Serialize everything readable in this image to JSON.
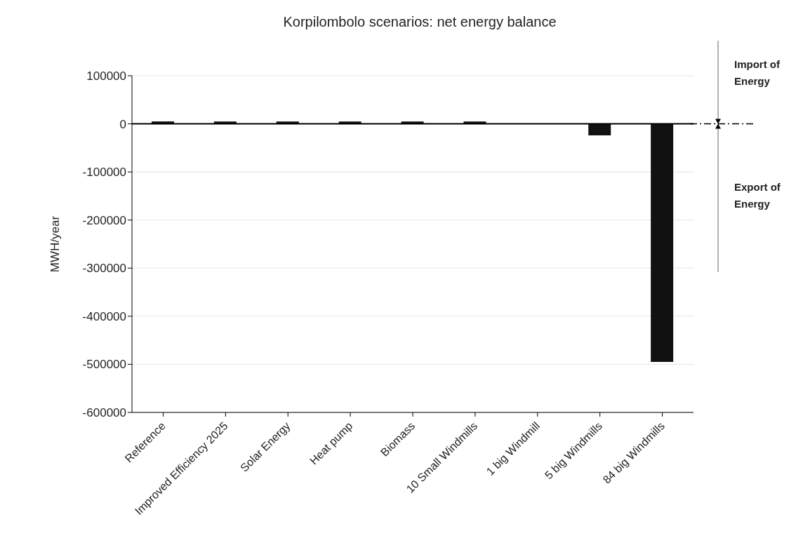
{
  "chart_data": {
    "type": "bar",
    "title": "Korpilombolo scenarios: net energy balance",
    "ylabel": "MWH/year",
    "categories": [
      "Reference",
      "Improved Efficiency 2025",
      "Solar Energy",
      "Heat pump",
      "Biomass",
      "10 Small Windmills",
      "1 big Windmill",
      "5 big Windmills",
      "84 big Windmills"
    ],
    "values": [
      5000,
      5000,
      5000,
      5000,
      5000,
      5000,
      0,
      -24000,
      -495000
    ],
    "color": "#111111",
    "ylim": [
      -600000,
      100000
    ],
    "yticks": [
      -600000,
      -500000,
      -400000,
      -300000,
      -200000,
      -100000,
      0,
      100000
    ],
    "grid": "y",
    "annotations": [
      "Import of Energy",
      "Export of Energy"
    ]
  }
}
